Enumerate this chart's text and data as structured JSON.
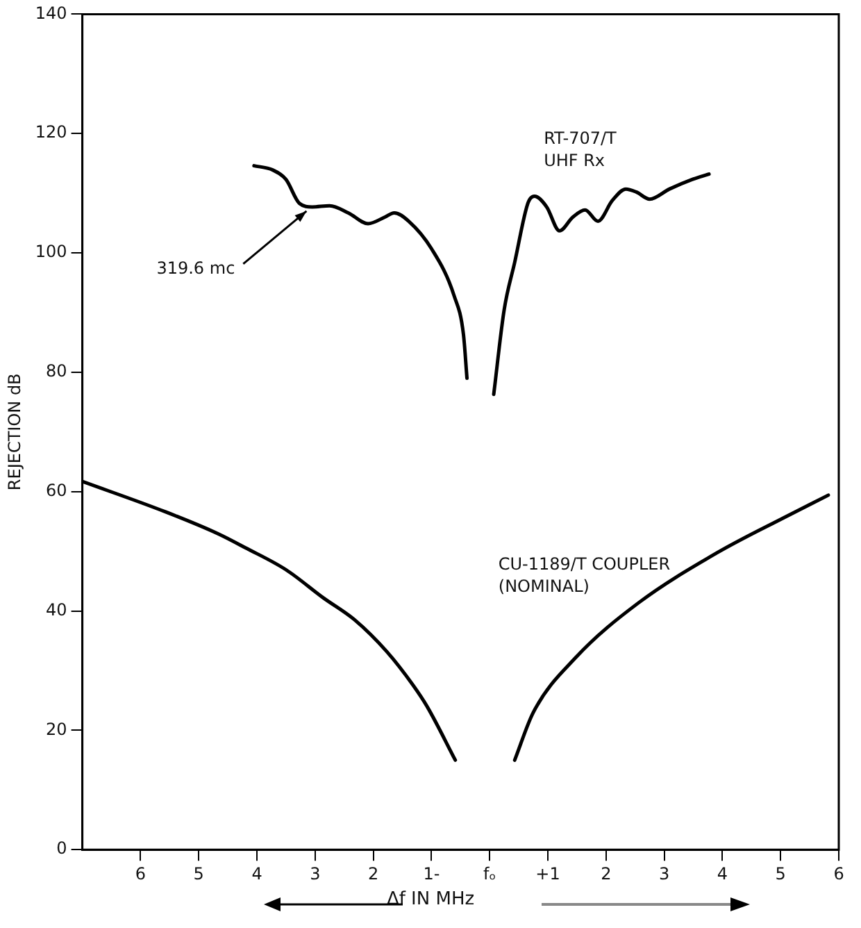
{
  "chart_data": {
    "type": "line",
    "xlabel": "Δf IN MHz",
    "ylabel": "REJECTION dB",
    "xlim": [
      -7,
      6
    ],
    "ylim": [
      0,
      140
    ],
    "xticks": [
      {
        "value": -6,
        "label": "6"
      },
      {
        "value": -5,
        "label": "5"
      },
      {
        "value": -4,
        "label": "4"
      },
      {
        "value": -3,
        "label": "3"
      },
      {
        "value": -2,
        "label": "2"
      },
      {
        "value": -1,
        "label": "1-"
      },
      {
        "value": 0,
        "label": "fₒ"
      },
      {
        "value": 1,
        "label": "+1"
      },
      {
        "value": 2,
        "label": "2"
      },
      {
        "value": 3,
        "label": "3"
      },
      {
        "value": 4,
        "label": "4"
      },
      {
        "value": 5,
        "label": "5"
      },
      {
        "value": 6,
        "label": "6"
      }
    ],
    "yticks": [
      0,
      20,
      40,
      60,
      80,
      100,
      120,
      140
    ],
    "grid": false,
    "legend": false,
    "marker": "none",
    "line_style": "solid",
    "series": [
      {
        "color": "#000000",
        "x": [
          -4.05,
          -3.73,
          -3.5,
          -3.27,
          -3.05,
          -2.75,
          -2.43,
          -2.09,
          -1.8,
          -1.64,
          -1.39,
          -1.0,
          -0.61,
          -0.45,
          -0.39,
          0,
          0.07,
          0.25,
          0.43,
          0.66,
          0.77,
          0.98,
          1.2,
          1.43,
          1.64,
          1.86,
          2.11,
          2.34,
          2.52,
          2.75,
          3.09,
          3.48,
          3.77
        ],
        "values": [
          114.6,
          113.9,
          112.3,
          108.3,
          107.7,
          107.9,
          106.7,
          104.9,
          106.0,
          106.7,
          105.3,
          100.7,
          92.8,
          86.3,
          79,
          null,
          76.3,
          90.5,
          98.4,
          108.4,
          109.5,
          107.7,
          103.7,
          106.0,
          107.2,
          105.3,
          108.8,
          110.7,
          110.2,
          109.0,
          110.7,
          112.3,
          113.2
        ]
      },
      {
        "color": "#000000",
        "x": [
          -7,
          -5.57,
          -4.66,
          -4.2,
          -3.5,
          -2.86,
          -2.32,
          -1.77,
          -1.32,
          -1.07,
          -0.59,
          0,
          0.43,
          0.75,
          1.48,
          2.55,
          3.9,
          5.07,
          5.82
        ],
        "values": [
          61.7,
          56.6,
          52.9,
          50.6,
          46.9,
          42.2,
          38.5,
          33.2,
          27.6,
          23.9,
          15,
          null,
          15,
          23,
          32.2,
          41.3,
          49.7,
          55.7,
          59.4
        ]
      }
    ],
    "annotations": [
      "RT-707/T\nUHF Rx",
      {
        "text": "319.6 mc",
        "x": -3.1,
        "y": 107.7
      },
      "CU-1189/T COUPLER\n(NOMINAL)"
    ]
  }
}
